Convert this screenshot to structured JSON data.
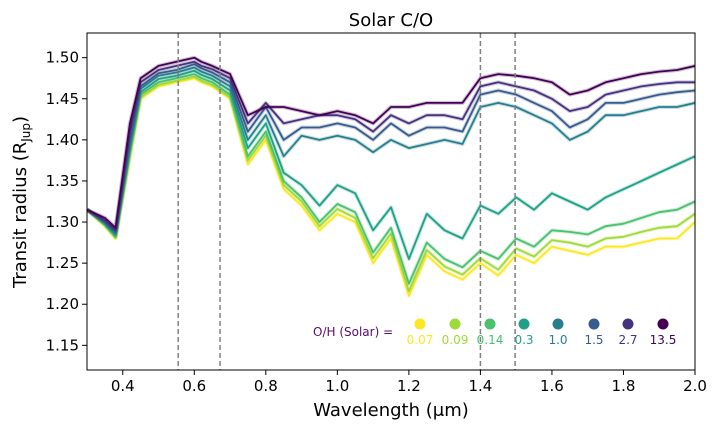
{
  "chart_data": {
    "type": "line",
    "title": "Solar C/O",
    "xlabel": "Wavelength (μm)",
    "ylabel_main": "Transit radius (R",
    "ylabel_sub": "Jup",
    "ylabel_close": ")",
    "xlim": [
      0.3,
      2.0
    ],
    "ylim": [
      1.12,
      1.53
    ],
    "xticks": [
      0.4,
      0.6,
      0.8,
      1.0,
      1.2,
      1.4,
      1.6,
      1.8,
      2.0
    ],
    "xtick_labels": [
      "0.4",
      "0.6",
      "0.8",
      "1.0",
      "1.2",
      "1.4",
      "1.6",
      "1.8",
      "2.0"
    ],
    "yticks": [
      1.15,
      1.2,
      1.25,
      1.3,
      1.35,
      1.4,
      1.45,
      1.5
    ],
    "ytick_labels": [
      "1.15",
      "1.20",
      "1.25",
      "1.30",
      "1.35",
      "1.40",
      "1.45",
      "1.50"
    ],
    "vlines": [
      0.555,
      0.672,
      1.4,
      1.497
    ],
    "legend_prefix": "O/H (Solar) =",
    "x": [
      0.3,
      0.35,
      0.38,
      0.42,
      0.45,
      0.5,
      0.55,
      0.6,
      0.62,
      0.65,
      0.7,
      0.75,
      0.8,
      0.85,
      0.9,
      0.95,
      1.0,
      1.05,
      1.1,
      1.15,
      1.2,
      1.25,
      1.3,
      1.35,
      1.4,
      1.45,
      1.5,
      1.55,
      1.6,
      1.65,
      1.7,
      1.75,
      1.8,
      1.85,
      1.9,
      1.95,
      2.0
    ],
    "series": [
      {
        "name": "0.07",
        "color": "#fde725",
        "values": [
          1.315,
          1.295,
          1.28,
          1.38,
          1.45,
          1.465,
          1.47,
          1.475,
          1.47,
          1.465,
          1.45,
          1.37,
          1.4,
          1.34,
          1.32,
          1.29,
          1.31,
          1.3,
          1.25,
          1.28,
          1.21,
          1.26,
          1.24,
          1.23,
          1.25,
          1.235,
          1.26,
          1.25,
          1.27,
          1.265,
          1.26,
          1.27,
          1.27,
          1.275,
          1.28,
          1.28,
          1.3
        ]
      },
      {
        "name": "0.09",
        "color": "#a0da39",
        "values": [
          1.315,
          1.296,
          1.281,
          1.38,
          1.452,
          1.467,
          1.472,
          1.477,
          1.472,
          1.467,
          1.452,
          1.375,
          1.405,
          1.345,
          1.325,
          1.295,
          1.316,
          1.305,
          1.256,
          1.286,
          1.216,
          1.266,
          1.246,
          1.236,
          1.256,
          1.242,
          1.268,
          1.258,
          1.278,
          1.275,
          1.27,
          1.28,
          1.282,
          1.288,
          1.293,
          1.295,
          1.31
        ]
      },
      {
        "name": "0.14",
        "color": "#4ac16d",
        "values": [
          1.315,
          1.297,
          1.282,
          1.385,
          1.455,
          1.47,
          1.475,
          1.48,
          1.475,
          1.47,
          1.455,
          1.38,
          1.41,
          1.35,
          1.33,
          1.3,
          1.322,
          1.312,
          1.263,
          1.293,
          1.225,
          1.275,
          1.255,
          1.245,
          1.265,
          1.255,
          1.28,
          1.27,
          1.29,
          1.288,
          1.285,
          1.295,
          1.298,
          1.305,
          1.312,
          1.315,
          1.325
        ]
      },
      {
        "name": "0.3",
        "color": "#1fa187",
        "values": [
          1.315,
          1.298,
          1.284,
          1.39,
          1.458,
          1.474,
          1.478,
          1.484,
          1.479,
          1.474,
          1.46,
          1.39,
          1.42,
          1.36,
          1.345,
          1.32,
          1.345,
          1.335,
          1.29,
          1.318,
          1.255,
          1.31,
          1.29,
          1.28,
          1.32,
          1.31,
          1.33,
          1.315,
          1.335,
          1.325,
          1.315,
          1.33,
          1.34,
          1.35,
          1.36,
          1.37,
          1.38
        ]
      },
      {
        "name": "1.0",
        "color": "#277f8e",
        "values": [
          1.315,
          1.299,
          1.286,
          1.395,
          1.462,
          1.478,
          1.482,
          1.488,
          1.483,
          1.478,
          1.465,
          1.4,
          1.43,
          1.38,
          1.405,
          1.4,
          1.405,
          1.4,
          1.385,
          1.4,
          1.39,
          1.395,
          1.4,
          1.395,
          1.44,
          1.445,
          1.44,
          1.43,
          1.42,
          1.4,
          1.41,
          1.43,
          1.43,
          1.435,
          1.44,
          1.44,
          1.445
        ]
      },
      {
        "name": "1.5",
        "color": "#365c8d",
        "values": [
          1.315,
          1.3,
          1.288,
          1.4,
          1.465,
          1.481,
          1.485,
          1.492,
          1.487,
          1.482,
          1.47,
          1.41,
          1.44,
          1.4,
          1.415,
          1.415,
          1.42,
          1.415,
          1.4,
          1.42,
          1.405,
          1.415,
          1.415,
          1.41,
          1.455,
          1.46,
          1.455,
          1.445,
          1.435,
          1.415,
          1.425,
          1.445,
          1.445,
          1.45,
          1.455,
          1.458,
          1.46
        ]
      },
      {
        "name": "2.7",
        "color": "#46327e",
        "values": [
          1.315,
          1.302,
          1.29,
          1.41,
          1.47,
          1.485,
          1.49,
          1.495,
          1.49,
          1.486,
          1.475,
          1.42,
          1.445,
          1.42,
          1.425,
          1.43,
          1.43,
          1.425,
          1.41,
          1.43,
          1.42,
          1.43,
          1.43,
          1.425,
          1.465,
          1.47,
          1.465,
          1.46,
          1.45,
          1.435,
          1.44,
          1.455,
          1.46,
          1.465,
          1.468,
          1.47,
          1.47
        ]
      },
      {
        "name": "13.5",
        "color": "#440154",
        "values": [
          1.315,
          1.305,
          1.293,
          1.42,
          1.475,
          1.49,
          1.495,
          1.5,
          1.495,
          1.49,
          1.48,
          1.43,
          1.44,
          1.44,
          1.435,
          1.43,
          1.435,
          1.43,
          1.42,
          1.44,
          1.44,
          1.445,
          1.445,
          1.445,
          1.475,
          1.48,
          1.478,
          1.475,
          1.47,
          1.455,
          1.46,
          1.47,
          1.475,
          1.48,
          1.483,
          1.485,
          1.49
        ]
      }
    ]
  }
}
